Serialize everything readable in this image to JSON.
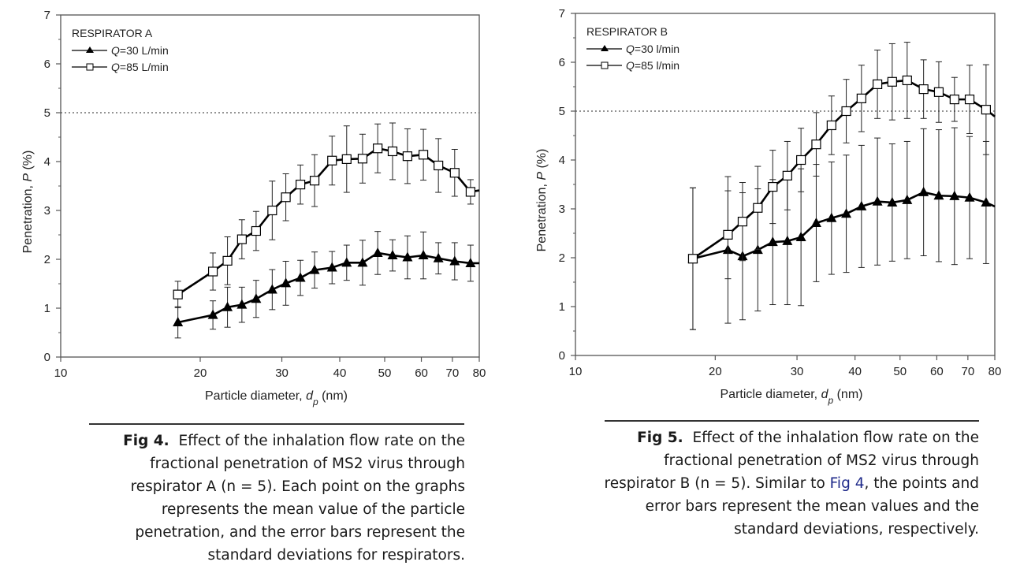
{
  "chart_data": [
    {
      "type": "line",
      "title": "RESPIRATOR A",
      "xlabel": "Particle diameter, d_p (nm)",
      "xlabel_parts": {
        "pre": "Particle diameter, ",
        "var": "d",
        "sub": "p",
        "post": " (nm)"
      },
      "ylabel": "Penetration, P (%)",
      "ylabel_parts": {
        "pre": "Penetration, ",
        "var": "P",
        "post": " (%)"
      },
      "xscale": "log",
      "xlim": [
        10,
        80
      ],
      "ylim": [
        0,
        7
      ],
      "xticks": [
        10,
        20,
        30,
        40,
        50,
        60,
        70,
        80
      ],
      "yticks": [
        0,
        1,
        2,
        3,
        4,
        5,
        6,
        7
      ],
      "reference_line": {
        "y": 5,
        "style": "dotted"
      },
      "legend_position": "top-left",
      "x": [
        17.9,
        21.3,
        22.9,
        24.6,
        26.4,
        28.6,
        30.6,
        32.9,
        35.3,
        38.5,
        41.4,
        44.8,
        48.3,
        52.0,
        56.0,
        60.6,
        65.3,
        70.8,
        76.6,
        80
      ],
      "series": [
        {
          "name": "Q=30 L/min",
          "legend_parts": {
            "var": "Q",
            "post": "=30 L/min"
          },
          "marker": "filled-triangle",
          "values": [
            0.71,
            0.86,
            1.02,
            1.07,
            1.19,
            1.38,
            1.51,
            1.62,
            1.78,
            1.83,
            1.93,
            1.93,
            2.13,
            2.08,
            2.04,
            2.08,
            2.02,
            1.96,
            1.92,
            1.92
          ],
          "sd": [
            0.32,
            0.29,
            0.41,
            0.36,
            0.38,
            0.41,
            0.45,
            0.36,
            0.37,
            0.33,
            0.36,
            0.46,
            0.44,
            0.32,
            0.44,
            0.48,
            0.32,
            0.38,
            0.37,
            null
          ]
        },
        {
          "name": "Q=85 L/min",
          "legend_parts": {
            "var": "Q",
            "post": "=85 L/min"
          },
          "marker": "open-square",
          "values": [
            1.28,
            1.75,
            1.97,
            2.41,
            2.58,
            3.0,
            3.27,
            3.53,
            3.61,
            4.02,
            4.05,
            4.06,
            4.27,
            4.21,
            4.11,
            4.14,
            3.92,
            3.77,
            3.38,
            3.41
          ],
          "sd": [
            0.27,
            0.38,
            0.49,
            0.4,
            0.4,
            0.6,
            0.48,
            0.4,
            0.53,
            0.5,
            0.68,
            0.5,
            0.5,
            0.58,
            0.56,
            0.52,
            0.55,
            0.48,
            0.25,
            null
          ]
        }
      ]
    },
    {
      "type": "line",
      "title": "RESPIRATOR B",
      "xlabel": "Particle diameter, d_p (nm)",
      "xlabel_parts": {
        "pre": "Particle diameter, ",
        "var": "d",
        "sub": "p",
        "post": " (nm)"
      },
      "ylabel": "Penetration, P (%)",
      "ylabel_parts": {
        "pre": "Penetration, ",
        "var": "P",
        "post": " (%)"
      },
      "xscale": "log",
      "xlim": [
        10,
        80
      ],
      "ylim": [
        0,
        7
      ],
      "xticks": [
        10,
        20,
        30,
        40,
        50,
        60,
        70,
        80
      ],
      "yticks": [
        0,
        1,
        2,
        3,
        4,
        5,
        6,
        7
      ],
      "reference_line": {
        "y": 5,
        "style": "dotted"
      },
      "legend_position": "top-left",
      "x": [
        17.9,
        21.3,
        22.9,
        24.7,
        26.6,
        28.6,
        30.6,
        33.0,
        35.6,
        38.3,
        41.3,
        44.7,
        48.1,
        51.8,
        56.2,
        60.6,
        65.5,
        70.6,
        76.6,
        80
      ],
      "series": [
        {
          "name": "Q=30 l/min",
          "legend_parts": {
            "var": "Q",
            "post": "=30 l/min"
          },
          "marker": "filled-triangle",
          "values": [
            1.98,
            2.16,
            2.03,
            2.16,
            2.32,
            2.34,
            2.42,
            2.71,
            2.81,
            2.9,
            3.05,
            3.15,
            3.13,
            3.18,
            3.34,
            3.27,
            3.26,
            3.23,
            3.13,
            3.05
          ],
          "sd": [
            1.45,
            1.5,
            1.3,
            1.25,
            1.28,
            1.3,
            1.4,
            1.2,
            1.15,
            1.2,
            1.25,
            1.3,
            1.2,
            1.2,
            1.3,
            1.35,
            1.4,
            1.25,
            1.25,
            null
          ]
        },
        {
          "name": "Q=85 l/min",
          "legend_parts": {
            "var": "Q",
            "post": "=85 l/min"
          },
          "marker": "open-square",
          "values": [
            1.98,
            2.47,
            2.74,
            3.02,
            3.45,
            3.68,
            4.0,
            4.32,
            4.71,
            5.0,
            5.26,
            5.55,
            5.6,
            5.63,
            5.45,
            5.39,
            5.24,
            5.24,
            5.03,
            4.89
          ],
          "sd": [
            1.45,
            0.9,
            0.8,
            0.85,
            0.75,
            0.7,
            0.65,
            0.65,
            0.6,
            0.65,
            0.68,
            0.7,
            0.78,
            0.78,
            0.6,
            0.62,
            0.45,
            0.7,
            0.92,
            null
          ]
        }
      ]
    }
  ],
  "captions": [
    {
      "label": "Fig 4.",
      "lines": [
        "Effect of the inhalation flow rate on the",
        "fractional penetration of MS2 virus through",
        "respirator A (n = 5). Each point on the graphs",
        "represents the mean value of the particle",
        "penetration, and the error bars represent the",
        "standard deviations for respirators."
      ]
    },
    {
      "label": "Fig 5.",
      "line1": "Effect of the inhalation flow rate on the",
      "line2": "fractional penetration of MS2 virus through",
      "line3_pre": "respirator B (n = 5). Similar to ",
      "line3_link": "Fig 4",
      "line3_post": ", the points and",
      "line4": "error bars represent the mean values and the",
      "line5": "standard deviations, respectively."
    }
  ]
}
